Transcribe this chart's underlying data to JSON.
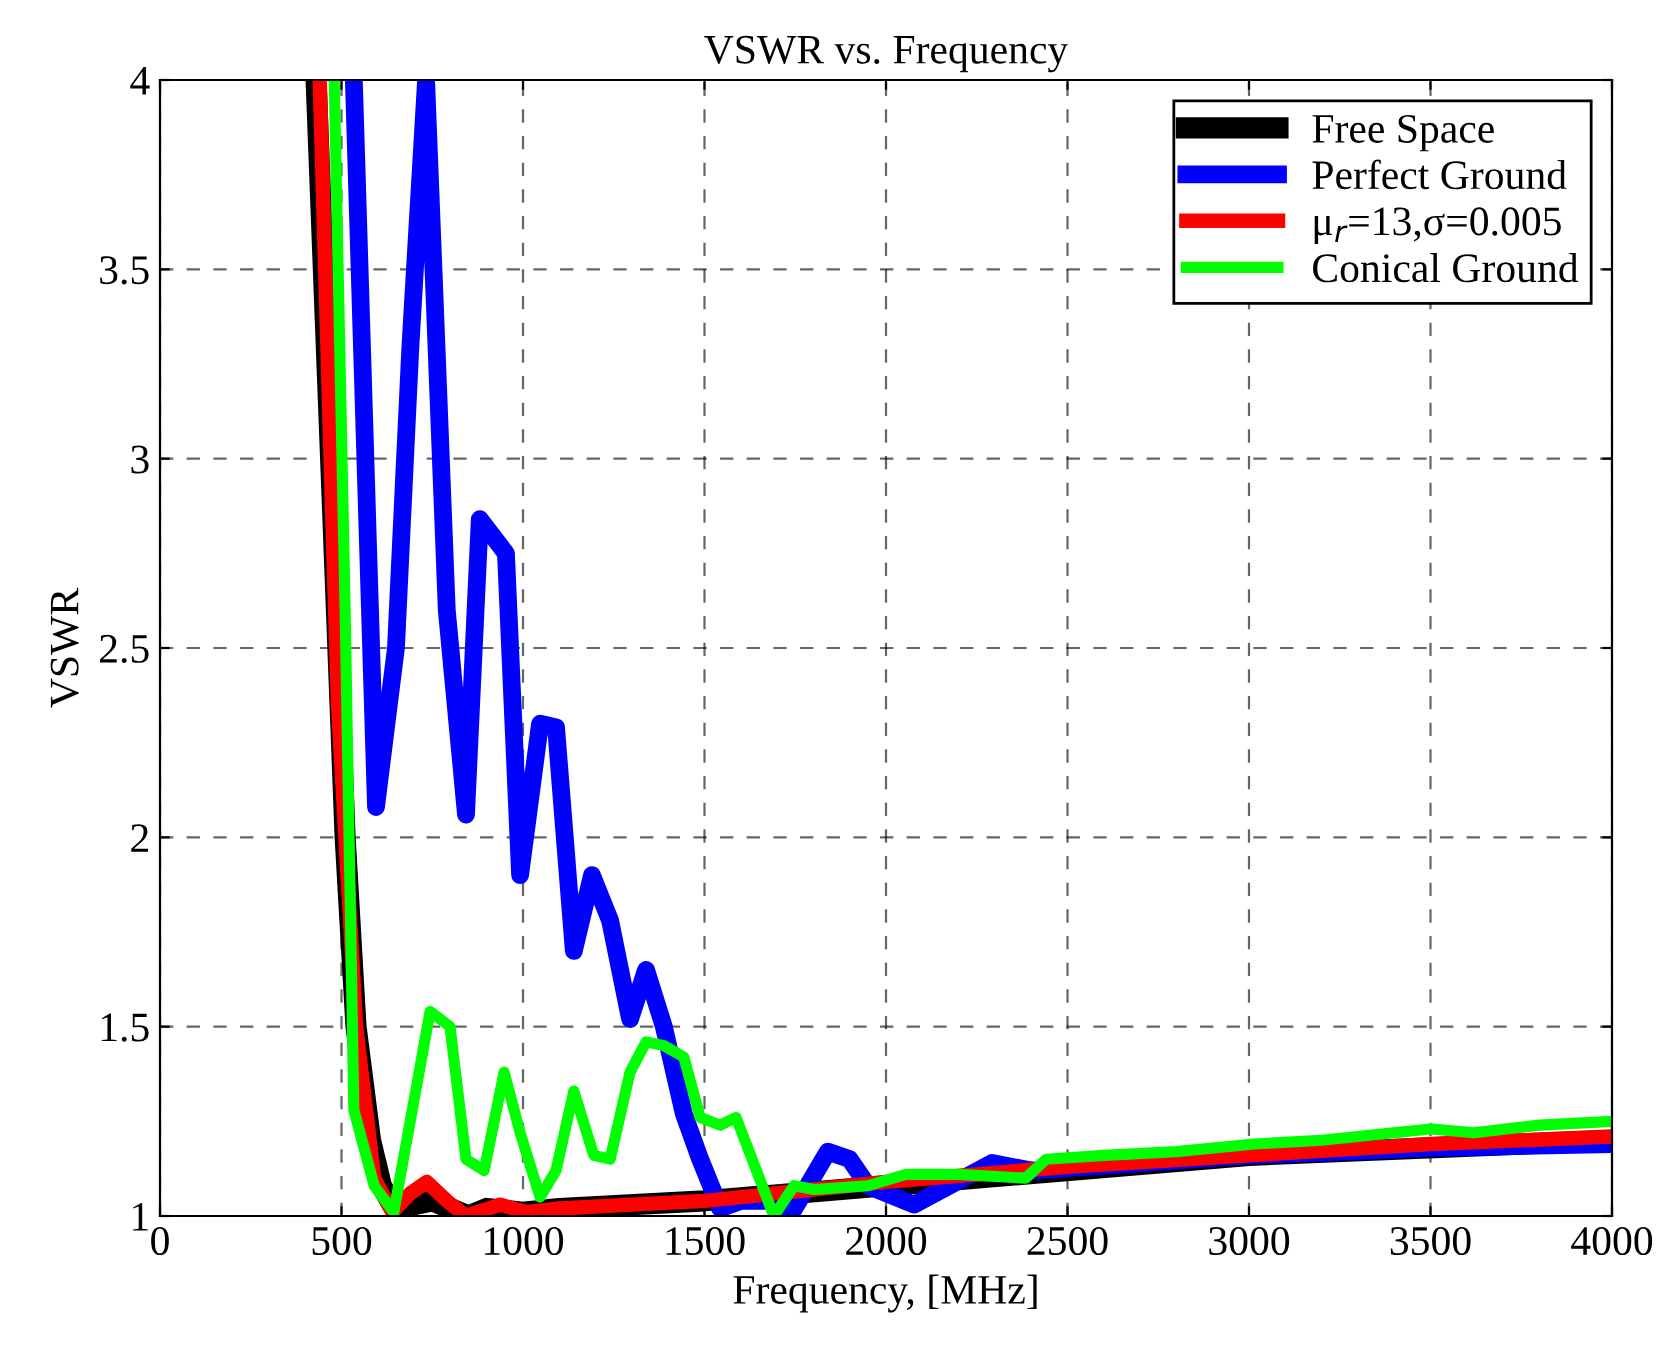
{
  "chart_data": {
    "type": "line",
    "title": "VSWR vs. Frequency",
    "xlabel": "Frequency, [MHz]",
    "ylabel": "VSWR",
    "xlim": [
      0,
      4000
    ],
    "ylim": [
      1,
      4
    ],
    "xticks": [
      0,
      500,
      1000,
      1500,
      2000,
      2500,
      3000,
      3500,
      4000
    ],
    "yticks": [
      1,
      1.5,
      2,
      2.5,
      3,
      3.5,
      4
    ],
    "grid": true,
    "legend": "top right",
    "line_style": "solid",
    "marker": "none",
    "series": [
      {
        "name": "Free Space",
        "color": "#000000",
        "x": [
          430,
          470,
          510,
          540,
          580,
          610,
          640,
          700,
          750,
          800,
          850,
          900,
          1000,
          1100,
          1500,
          2000,
          3000,
          4000
        ],
        "values": [
          4,
          3,
          2,
          1.5,
          1.2,
          1.08,
          1.03,
          1.03,
          1.04,
          1.02,
          1.0,
          1.02,
          1.01,
          1.02,
          1.04,
          1.08,
          1.16,
          1.2
        ]
      },
      {
        "name": "Perfect Ground",
        "color": "#0000ff",
        "x": [
          534,
          595,
          650,
          690,
          733,
          790,
          843,
          881,
          953,
          992,
          1047,
          1091,
          1140,
          1190,
          1240,
          1295,
          1339,
          1388,
          1443,
          1488,
          1543,
          1600,
          1686,
          1735,
          1840,
          1900,
          1950,
          2077,
          2292,
          2400,
          3000,
          3500,
          4000
        ],
        "values": [
          4,
          2.08,
          2.5,
          3.3,
          4,
          2.6,
          2.06,
          2.84,
          2.75,
          1.9,
          2.3,
          2.29,
          1.7,
          1.9,
          1.78,
          1.52,
          1.65,
          1.5,
          1.27,
          1.15,
          1.02,
          1.04,
          1.04,
          1.0,
          1.17,
          1.15,
          1.08,
          1.03,
          1.14,
          1.12,
          1.16,
          1.18,
          1.19
        ]
      },
      {
        "name": "μ$_{r}$=13,σ=0.005",
        "color": "#ff0000",
        "x": [
          440,
          470,
          490,
          540,
          590,
          640,
          690,
          735,
          790,
          843,
          937,
          1008,
          1100,
          1300,
          1500,
          1600,
          1800,
          2000,
          2500,
          3000,
          3500,
          4000
        ],
        "values": [
          4,
          3,
          2.36,
          1.5,
          1.1,
          1.01,
          1.06,
          1.09,
          1.04,
          1.0,
          1.03,
          1.01,
          1.02,
          1.03,
          1.04,
          1.05,
          1.07,
          1.09,
          1.13,
          1.16,
          1.19,
          1.21
        ]
      },
      {
        "name": "Conical Ground",
        "color": "#00ff00",
        "x": [
          480,
          510,
          534,
          590,
          644,
          744,
          799,
          843,
          893,
          948,
          992,
          1047,
          1091,
          1140,
          1195,
          1240,
          1295,
          1339,
          1388,
          1443,
          1488,
          1543,
          1587,
          1691,
          1747,
          1802,
          1950,
          2055,
          2200,
          2385,
          2441,
          2600,
          2800,
          3014,
          3200,
          3499,
          3620,
          3800,
          4000
        ],
        "values": [
          4,
          2.6,
          1.28,
          1.08,
          1.01,
          1.54,
          1.5,
          1.15,
          1.12,
          1.38,
          1.22,
          1.05,
          1.12,
          1.33,
          1.16,
          1.15,
          1.38,
          1.46,
          1.45,
          1.42,
          1.26,
          1.24,
          1.26,
          1.0,
          1.08,
          1.07,
          1.08,
          1.11,
          1.11,
          1.1,
          1.15,
          1.16,
          1.17,
          1.19,
          1.2,
          1.23,
          1.22,
          1.24,
          1.25
        ]
      }
    ]
  }
}
